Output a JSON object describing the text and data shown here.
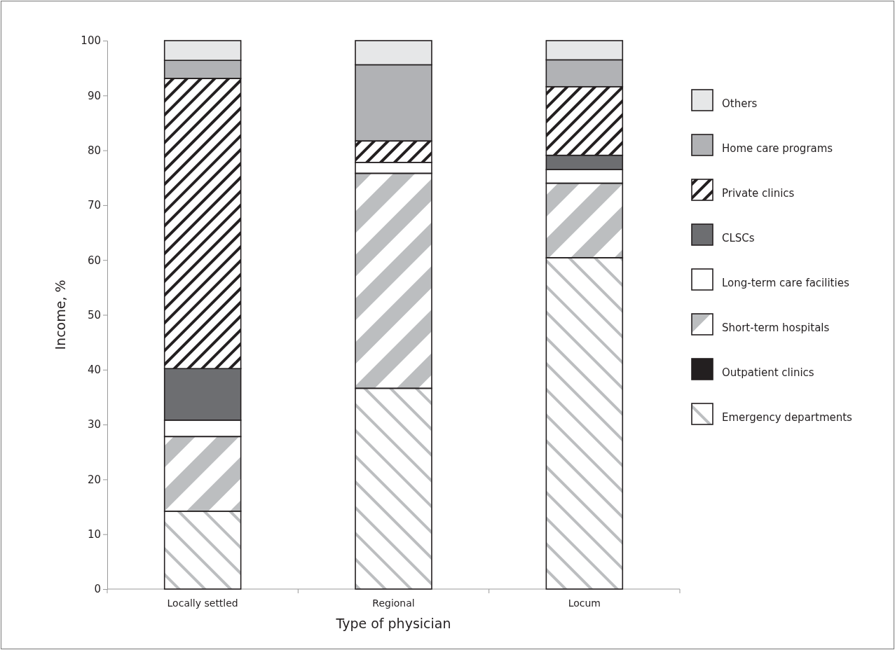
{
  "chart_data": {
    "type": "bar",
    "stacked": true,
    "xlabel": "Type of physician",
    "ylabel": "Income, %",
    "categories": [
      "Locally settled",
      "Regional",
      "Locum"
    ],
    "ylim": [
      0,
      100
    ],
    "yticks": [
      0,
      10,
      20,
      30,
      40,
      50,
      60,
      70,
      80,
      90,
      100
    ],
    "grid": false,
    "legend": "right",
    "series": [
      {
        "name": "Emergency departments",
        "color": "#bcbec0",
        "values": [
          14.2,
          36.6,
          60.4
        ]
      },
      {
        "name": "Outpatient clinics",
        "color": "#231f20",
        "values": [
          null,
          null,
          null
        ]
      },
      {
        "name": "Short-term hospitals",
        "color": "#bcbec0",
        "values": [
          13.6,
          39.2,
          13.6
        ]
      },
      {
        "name": "Long-term care facilities",
        "color": "#ffffff",
        "values": [
          3.0,
          2.0,
          2.5
        ]
      },
      {
        "name": "CLSCs",
        "color": "#6d6e71",
        "values": [
          9.4,
          0,
          2.6
        ]
      },
      {
        "name": "Private clinics",
        "color": "#231f20",
        "values": [
          52.9,
          3.9,
          12.5
        ]
      },
      {
        "name": "Home care programs",
        "color": "#b1b2b5",
        "values": [
          3.3,
          13.9,
          4.9
        ]
      },
      {
        "name": "Others",
        "color": "#e6e7e8",
        "values": [
          3.6,
          4.4,
          3.5
        ]
      }
    ]
  }
}
